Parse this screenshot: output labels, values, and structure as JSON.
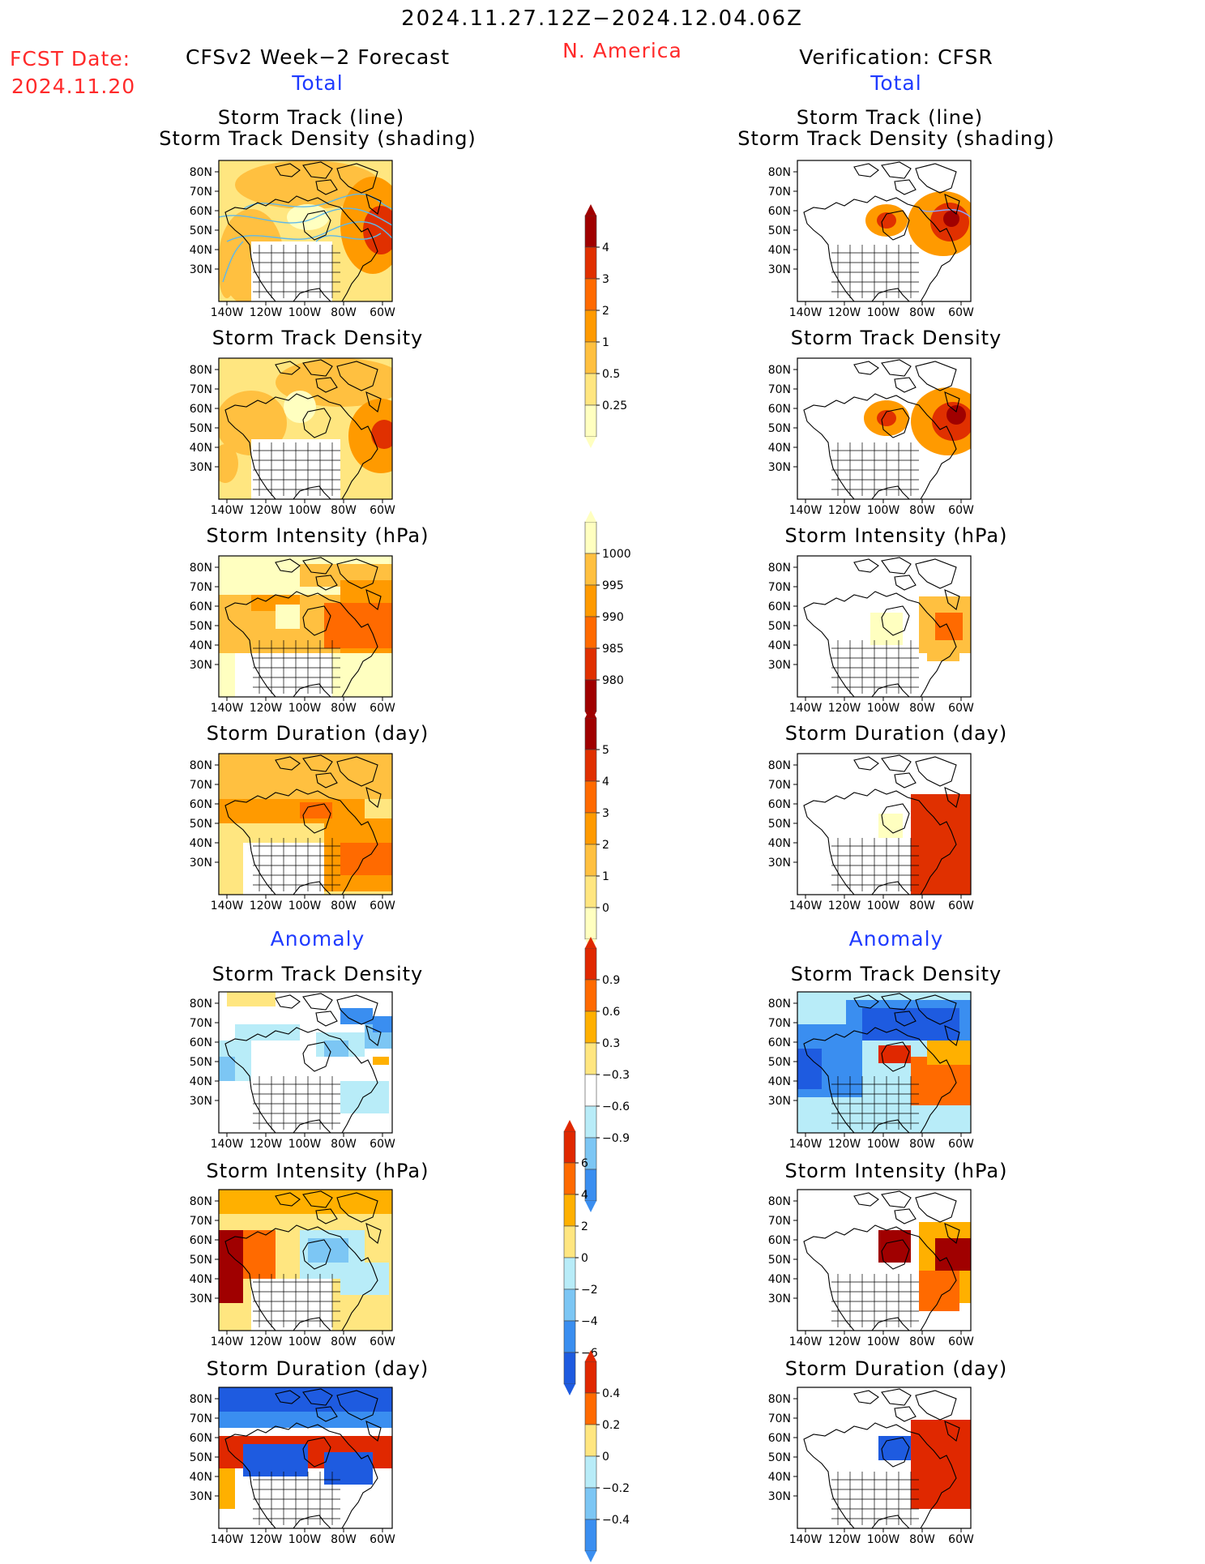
{
  "header": {
    "period": "2024.11.27.12Z−2024.12.04.06Z",
    "region": "N. America",
    "fcst_label": "FCST Date:",
    "fcst_date": "2024.11.20",
    "left_title": "CFSv2 Week−2 Forecast",
    "right_title": "Verification: CFSR"
  },
  "sections": {
    "total": "Total",
    "anomaly": "Anomaly"
  },
  "panels": {
    "storm_track_line": {
      "title1": "Storm Track (line)",
      "title2": "Storm Track Density (shading)"
    },
    "storm_track_density": "Storm Track Density",
    "storm_intensity": "Storm Intensity (hPa)",
    "storm_duration": "Storm Duration (day)"
  },
  "axes": {
    "lat_labels": [
      "80N",
      "70N",
      "60N",
      "50N",
      "40N",
      "30N"
    ],
    "lon_labels": [
      "140W",
      "120W",
      "100W",
      "80W",
      "60W"
    ]
  },
  "colorbars": {
    "density_total": [
      "4",
      "3",
      "2",
      "1",
      "0.5",
      "0.25"
    ],
    "intensity_total": [
      "1000",
      "995",
      "990",
      "985",
      "980"
    ],
    "duration_total": [
      "5",
      "4",
      "3",
      "2",
      "1",
      "0"
    ],
    "density_anom": [
      "0.9",
      "0.6",
      "0.3",
      "−0.3",
      "−0.6",
      "−0.9"
    ],
    "intensity_anom": [
      "6",
      "4",
      "2",
      "0",
      "−2",
      "−4",
      "−6"
    ],
    "duration_anom": [
      "0.4",
      "0.2",
      "0",
      "−0.2",
      "−0.4"
    ]
  },
  "colors": {
    "total_scale": [
      "#ffffc0",
      "#ffe680",
      "#ffc040",
      "#ff9a00",
      "#ff6a00",
      "#e03000",
      "#a00000"
    ],
    "anom_scale": [
      "#1e5be0",
      "#3a8ef0",
      "#7cc6f4",
      "#b8ecf8",
      "#ffffff",
      "#ffe680",
      "#ffb000",
      "#ff6a00",
      "#e02800"
    ],
    "title_red": "#ff2a2a",
    "label_blue": "#1f3bff",
    "track_line": "#5fb8e8"
  }
}
